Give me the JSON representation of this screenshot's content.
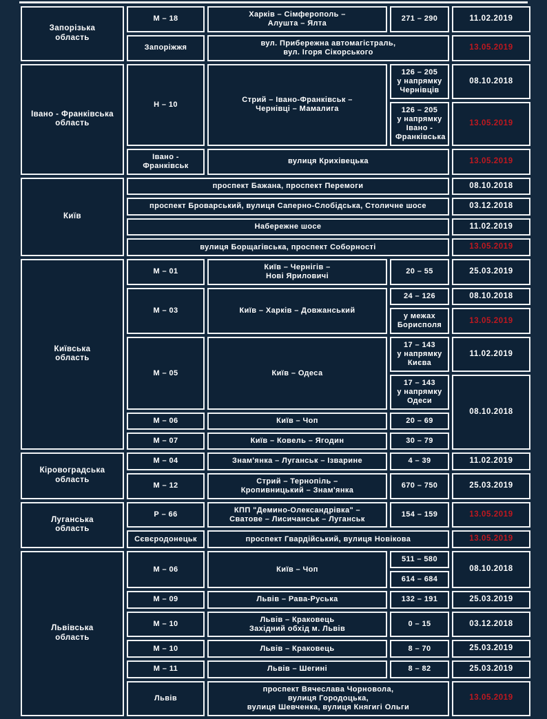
{
  "colors": {
    "page_background": "#14293e",
    "cell_background": "#0e2236",
    "border": "#f2f5f7",
    "text": "#ffffff",
    "highlight_date": "#c0181f"
  },
  "table": {
    "columns": [
      "region",
      "road-code",
      "route",
      "km-range",
      "date"
    ],
    "rows": [
      [
        {
          "kind": "region",
          "rowspan": 2,
          "lines": [
            "Запорізька",
            "область"
          ]
        },
        {
          "kind": "code",
          "lines": [
            "М – 18"
          ]
        },
        {
          "kind": "route",
          "lines": [
            "Харків – Сімферополь –",
            "Алушта – Ялта"
          ]
        },
        {
          "kind": "km",
          "lines": [
            "271 – 290"
          ]
        },
        {
          "kind": "date",
          "lines": [
            "11.02.2019"
          ]
        }
      ],
      [
        {
          "kind": "city",
          "lines": [
            "Запоріжжя"
          ]
        },
        {
          "kind": "street",
          "colspan": 2,
          "lines": [
            "вул. Прибережна автомагістраль,",
            "вул. Ігоря Сікорського"
          ]
        },
        {
          "kind": "date",
          "red": true,
          "lines": [
            "13.05.2019"
          ]
        }
      ],
      [
        {
          "kind": "region",
          "rowspan": 3,
          "lines": [
            "Івано - Франківська",
            "область"
          ]
        },
        {
          "kind": "code",
          "rowspan": 2,
          "lines": [
            "Н – 10"
          ]
        },
        {
          "kind": "route",
          "rowspan": 2,
          "lines": [
            "Стрий – Івано-Франківськ –",
            "Чернівці – Мамалига"
          ]
        },
        {
          "kind": "km",
          "lines": [
            "126 – 205",
            "у напрямку",
            "Чернівців"
          ]
        },
        {
          "kind": "date",
          "lines": [
            "08.10.2018"
          ]
        }
      ],
      [
        {
          "kind": "km",
          "lines": [
            "126 – 205",
            "у напрямку",
            "Івано -",
            "Франківська"
          ]
        },
        {
          "kind": "date",
          "red": true,
          "lines": [
            "13.05.2019"
          ]
        }
      ],
      [
        {
          "kind": "city",
          "lines": [
            "Івано -",
            "Франківськ"
          ]
        },
        {
          "kind": "street",
          "colspan": 2,
          "lines": [
            "вулиця Крихівецька"
          ]
        },
        {
          "kind": "date",
          "red": true,
          "lines": [
            "13.05.2019"
          ]
        }
      ],
      [
        {
          "kind": "region",
          "rowspan": 4,
          "lines": [
            "Київ"
          ]
        },
        {
          "kind": "street",
          "colspan": 3,
          "lines": [
            "проспект Бажана, проспект Перемоги"
          ]
        },
        {
          "kind": "date",
          "lines": [
            "08.10.2018"
          ]
        }
      ],
      [
        {
          "kind": "street",
          "colspan": 3,
          "lines": [
            "проспект Броварський, вулиця Саперно-Слобідська, Столичне шосе"
          ]
        },
        {
          "kind": "date",
          "lines": [
            "03.12.2018"
          ]
        }
      ],
      [
        {
          "kind": "street",
          "colspan": 3,
          "lines": [
            "Набережне шосе"
          ]
        },
        {
          "kind": "date",
          "lines": [
            "11.02.2019"
          ]
        }
      ],
      [
        {
          "kind": "street",
          "colspan": 3,
          "lines": [
            "вулиця Борщагівська, проспект Соборності"
          ]
        },
        {
          "kind": "date",
          "red": true,
          "lines": [
            "13.05.2019"
          ]
        }
      ],
      [
        {
          "kind": "region",
          "rowspan": 7,
          "lines": [
            "Київська",
            "область"
          ]
        },
        {
          "kind": "code",
          "lines": [
            "М – 01"
          ]
        },
        {
          "kind": "route",
          "lines": [
            "Київ – Чернігів –",
            "Нові Яриловичі"
          ]
        },
        {
          "kind": "km",
          "lines": [
            "20 – 55"
          ]
        },
        {
          "kind": "date",
          "lines": [
            "25.03.2019"
          ]
        }
      ],
      [
        {
          "kind": "code",
          "rowspan": 2,
          "lines": [
            "М – 03"
          ]
        },
        {
          "kind": "route",
          "rowspan": 2,
          "lines": [
            "Київ – Харків – Довжанський"
          ]
        },
        {
          "kind": "km",
          "lines": [
            "24 – 126"
          ]
        },
        {
          "kind": "date",
          "lines": [
            "08.10.2018"
          ]
        }
      ],
      [
        {
          "kind": "km",
          "lines": [
            "у межах",
            "Борисполя"
          ]
        },
        {
          "kind": "date",
          "red": true,
          "lines": [
            "13.05.2019"
          ]
        }
      ],
      [
        {
          "kind": "code",
          "rowspan": 2,
          "lines": [
            "М – 05"
          ]
        },
        {
          "kind": "route",
          "rowspan": 2,
          "lines": [
            "Київ – Одеса"
          ]
        },
        {
          "kind": "km",
          "lines": [
            "17 – 143",
            "у напрямку",
            "Києва"
          ]
        },
        {
          "kind": "date",
          "lines": [
            "11.02.2019"
          ]
        }
      ],
      [
        {
          "kind": "km",
          "lines": [
            "17 – 143",
            "у напрямку",
            "Одеси"
          ]
        },
        {
          "kind": "date",
          "rowspan": 3,
          "lines": [
            "08.10.2018"
          ]
        }
      ],
      [
        {
          "kind": "code",
          "lines": [
            "М – 06"
          ]
        },
        {
          "kind": "route",
          "lines": [
            "Київ – Чоп"
          ]
        },
        {
          "kind": "km",
          "lines": [
            "20 – 69"
          ]
        }
      ],
      [
        {
          "kind": "code",
          "lines": [
            "М – 07"
          ]
        },
        {
          "kind": "route",
          "lines": [
            "Київ – Ковель – Ягодин"
          ]
        },
        {
          "kind": "km",
          "lines": [
            "30 – 79"
          ]
        }
      ],
      [
        {
          "kind": "region",
          "rowspan": 2,
          "lines": [
            "Кіровоградська",
            "область"
          ]
        },
        {
          "kind": "code",
          "lines": [
            "М – 04"
          ]
        },
        {
          "kind": "route",
          "lines": [
            "Знам'янка – Луганськ – Ізварине"
          ]
        },
        {
          "kind": "km",
          "lines": [
            "4 – 39"
          ]
        },
        {
          "kind": "date",
          "lines": [
            "11.02.2019"
          ]
        }
      ],
      [
        {
          "kind": "code",
          "lines": [
            "М – 12"
          ]
        },
        {
          "kind": "route",
          "lines": [
            "Стрий – Тернопіль –",
            "Кропивницький – Знам'янка"
          ]
        },
        {
          "kind": "km",
          "lines": [
            "670 – 750"
          ]
        },
        {
          "kind": "date",
          "lines": [
            "25.03.2019"
          ]
        }
      ],
      [
        {
          "kind": "region",
          "rowspan": 2,
          "lines": [
            "Луганська",
            "область"
          ]
        },
        {
          "kind": "code",
          "lines": [
            "Р – 66"
          ]
        },
        {
          "kind": "route",
          "lines": [
            "КПП \"Демино-Олександрівка\" –",
            "Сватове – Лисичанськ – Луганськ"
          ]
        },
        {
          "kind": "km",
          "lines": [
            "154 – 159"
          ]
        },
        {
          "kind": "date",
          "red": true,
          "lines": [
            "13.05.2019"
          ]
        }
      ],
      [
        {
          "kind": "city",
          "lines": [
            "Сєвєродонецьк"
          ]
        },
        {
          "kind": "street",
          "colspan": 2,
          "lines": [
            "проспект Гвардійський, вулиця Новікова"
          ]
        },
        {
          "kind": "date",
          "red": true,
          "lines": [
            "13.05.2019"
          ]
        }
      ],
      [
        {
          "kind": "region",
          "rowspan": 7,
          "lines": [
            "Львівська",
            "область"
          ]
        },
        {
          "kind": "code",
          "rowspan": 2,
          "lines": [
            "М – 06"
          ]
        },
        {
          "kind": "route",
          "rowspan": 2,
          "lines": [
            "Київ – Чоп"
          ]
        },
        {
          "kind": "km",
          "lines": [
            "511 – 580"
          ]
        },
        {
          "kind": "date",
          "rowspan": 2,
          "lines": [
            "08.10.2018"
          ]
        }
      ],
      [
        {
          "kind": "km",
          "lines": [
            "614 – 684"
          ]
        }
      ],
      [
        {
          "kind": "code",
          "lines": [
            "М – 09"
          ]
        },
        {
          "kind": "route",
          "lines": [
            "Львів – Рава-Руська"
          ]
        },
        {
          "kind": "km",
          "lines": [
            "132 – 191"
          ]
        },
        {
          "kind": "date",
          "lines": [
            "25.03.2019"
          ]
        }
      ],
      [
        {
          "kind": "code",
          "lines": [
            "М – 10"
          ]
        },
        {
          "kind": "route",
          "lines": [
            "Львів – Краковець",
            "Західний обхід м. Львів"
          ]
        },
        {
          "kind": "km",
          "lines": [
            "0 – 15"
          ]
        },
        {
          "kind": "date",
          "lines": [
            "03.12.2018"
          ]
        }
      ],
      [
        {
          "kind": "code",
          "lines": [
            "М – 10"
          ]
        },
        {
          "kind": "route",
          "lines": [
            "Львів – Краковець"
          ]
        },
        {
          "kind": "km",
          "lines": [
            "8 – 70"
          ]
        },
        {
          "kind": "date",
          "lines": [
            "25.03.2019"
          ]
        }
      ],
      [
        {
          "kind": "code",
          "lines": [
            "М – 11"
          ]
        },
        {
          "kind": "route",
          "lines": [
            "Львів – Шегині"
          ]
        },
        {
          "kind": "km",
          "lines": [
            "8 – 82"
          ]
        },
        {
          "kind": "date",
          "lines": [
            "25.03.2019"
          ]
        }
      ],
      [
        {
          "kind": "city",
          "lines": [
            "Львів"
          ]
        },
        {
          "kind": "street",
          "colspan": 2,
          "lines": [
            "проспект Вячеслава Чорновола,",
            "вулиця Городоцька,",
            "вулиця Шевченка, вулиця Княгигі Ольги"
          ]
        },
        {
          "kind": "date",
          "red": true,
          "lines": [
            "13.05.2019"
          ]
        }
      ]
    ]
  }
}
